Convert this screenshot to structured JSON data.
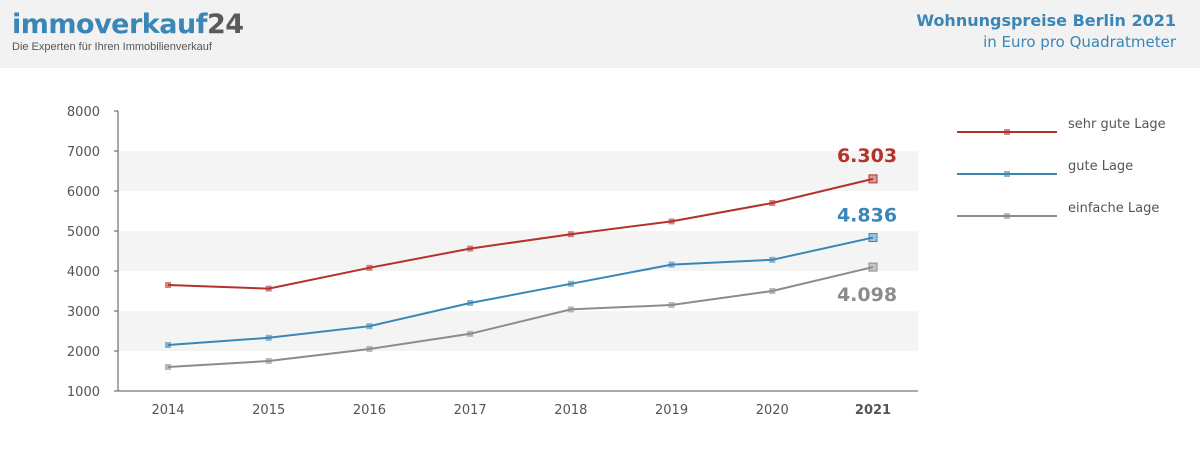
{
  "header": {
    "logo_main": "immoverkauf",
    "logo_num": "24",
    "tagline": "Die Experten für Ihren Immobilienverkauf",
    "title": "Wohnungspreise Berlin 2021",
    "subtitle": "in Euro pro Quadratmeter"
  },
  "chart_data": {
    "type": "line",
    "categories": [
      "2014",
      "2015",
      "2016",
      "2017",
      "2018",
      "2019",
      "2020",
      "2021"
    ],
    "ylim": [
      1000,
      8000
    ],
    "yticks": [
      "1000",
      "2000",
      "3000",
      "4000",
      "5000",
      "6000",
      "7000",
      "8000"
    ],
    "grid": "alternating horizontal bands",
    "legend_position": "right",
    "series": [
      {
        "name": "sehr gute Lage",
        "color": "#b3322c",
        "values": [
          3650,
          3560,
          4080,
          4560,
          4920,
          5240,
          5700,
          6303
        ],
        "end_label": "6.303"
      },
      {
        "name": "gute Lage",
        "color": "#3a86b6",
        "values": [
          2150,
          2330,
          2620,
          3200,
          3680,
          4160,
          4280,
          4836
        ],
        "end_label": "4.836"
      },
      {
        "name": "einfache Lage",
        "color": "#8c8c8c",
        "values": [
          1600,
          1750,
          2050,
          2430,
          3040,
          3150,
          3500,
          4098
        ],
        "end_label": "4.098"
      }
    ]
  }
}
